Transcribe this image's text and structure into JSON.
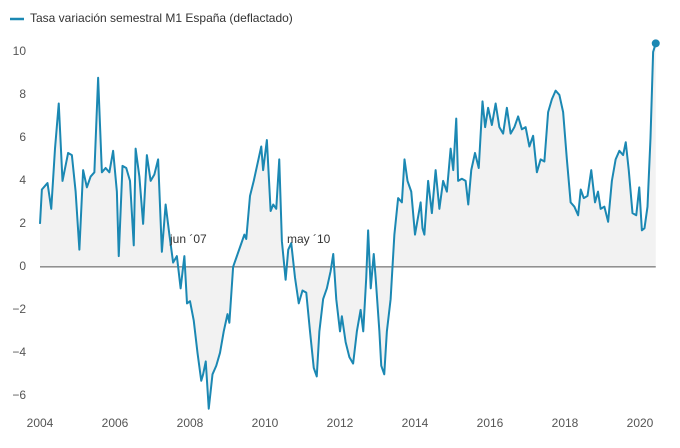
{
  "chart_data": {
    "type": "line",
    "series": [
      {
        "name": "Tasa variación semestral M1 España (deflactado)",
        "color": "#1b88b3",
        "x": [
          2004.0,
          2004.05,
          2004.15,
          2004.2,
          2004.3,
          2004.4,
          2004.5,
          2004.6,
          2004.75,
          2004.85,
          2004.95,
          2005.05,
          2005.15,
          2005.25,
          2005.35,
          2005.45,
          2005.55,
          2005.65,
          2005.75,
          2005.85,
          2005.95,
          2006.05,
          2006.1,
          2006.2,
          2006.3,
          2006.4,
          2006.5,
          2006.55,
          2006.65,
          2006.75,
          2006.85,
          2006.95,
          2007.05,
          2007.15,
          2007.25,
          2007.35,
          2007.45,
          2007.55,
          2007.65,
          2007.75,
          2007.85,
          2007.92,
          2008.0,
          2008.1,
          2008.2,
          2008.3,
          2008.35,
          2008.42,
          2008.5,
          2008.6,
          2008.7,
          2008.8,
          2008.9,
          2009.0,
          2009.05,
          2009.15,
          2009.25,
          2009.35,
          2009.45,
          2009.5,
          2009.6,
          2009.7,
          2009.8,
          2009.9,
          2009.95,
          2010.05,
          2010.15,
          2010.22,
          2010.3,
          2010.38,
          2010.45,
          2010.55,
          2010.62,
          2010.7,
          2010.8,
          2010.9,
          2011.0,
          2011.1,
          2011.2,
          2011.3,
          2011.38,
          2011.45,
          2011.55,
          2011.65,
          2011.75,
          2011.82,
          2011.9,
          2012.0,
          2012.05,
          2012.15,
          2012.25,
          2012.35,
          2012.45,
          2012.55,
          2012.62,
          2012.7,
          2012.75,
          2012.82,
          2012.9,
          2012.95,
          2013.05,
          2013.1,
          2013.18,
          2013.25,
          2013.35,
          2013.45,
          2013.55,
          2013.65,
          2013.72,
          2013.8,
          2013.9,
          2014.0,
          2014.05,
          2014.15,
          2014.2,
          2014.25,
          2014.35,
          2014.45,
          2014.55,
          2014.65,
          2014.75,
          2014.85,
          2014.95,
          2015.02,
          2015.1,
          2015.15,
          2015.25,
          2015.35,
          2015.42,
          2015.5,
          2015.6,
          2015.7,
          2015.8,
          2015.87,
          2015.95,
          2016.05,
          2016.15,
          2016.25,
          2016.35,
          2016.45,
          2016.55,
          2016.65,
          2016.75,
          2016.85,
          2016.95,
          2017.05,
          2017.15,
          2017.25,
          2017.35,
          2017.45,
          2017.55,
          2017.65,
          2017.75,
          2017.85,
          2017.95,
          2018.05,
          2018.15,
          2018.25,
          2018.35,
          2018.42,
          2018.5,
          2018.6,
          2018.7,
          2018.8,
          2018.88,
          2018.95,
          2019.05,
          2019.15,
          2019.25,
          2019.35,
          2019.45,
          2019.55,
          2019.62,
          2019.7,
          2019.8,
          2019.9,
          2019.98,
          2020.05,
          2020.12,
          2020.2,
          2020.28,
          2020.35,
          2020.42
        ],
        "values": [
          2.0,
          3.6,
          3.8,
          3.9,
          2.7,
          5.5,
          7.6,
          4.0,
          5.3,
          5.2,
          3.5,
          0.8,
          4.5,
          3.7,
          4.2,
          4.4,
          8.8,
          4.4,
          4.6,
          4.4,
          5.4,
          3.5,
          0.5,
          4.7,
          4.6,
          4.0,
          1.0,
          5.5,
          4.2,
          2.0,
          5.2,
          4.0,
          4.3,
          5.0,
          0.7,
          2.9,
          1.5,
          0.2,
          0.5,
          -1.0,
          0.5,
          -1.7,
          -1.6,
          -2.5,
          -4.0,
          -5.3,
          -5.0,
          -4.4,
          -6.6,
          -5.0,
          -4.6,
          -4.0,
          -3.0,
          -2.2,
          -2.6,
          0.0,
          0.5,
          1.0,
          1.5,
          1.3,
          3.3,
          4.0,
          4.8,
          5.6,
          4.5,
          5.9,
          2.6,
          2.9,
          2.7,
          5.0,
          1.2,
          -0.6,
          0.8,
          1.1,
          -0.5,
          -1.7,
          -1.1,
          -1.2,
          -3.0,
          -4.7,
          -5.1,
          -3.0,
          -1.5,
          -1.0,
          -0.2,
          0.6,
          -1.5,
          -3.0,
          -2.3,
          -3.5,
          -4.2,
          -4.5,
          -3.0,
          -2.0,
          -3.0,
          -0.5,
          1.7,
          -1.0,
          0.6,
          -0.5,
          -3.0,
          -4.6,
          -5.0,
          -3.0,
          -1.5,
          1.5,
          3.2,
          3.0,
          5.0,
          4.0,
          3.5,
          1.5,
          2.0,
          3.0,
          1.8,
          1.5,
          4.0,
          2.5,
          4.5,
          2.7,
          4.0,
          3.5,
          5.5,
          4.5,
          6.9,
          4.0,
          4.1,
          4.0,
          2.9,
          4.5,
          5.3,
          4.6,
          7.7,
          6.5,
          7.4,
          6.6,
          7.6,
          6.5,
          6.2,
          7.4,
          6.2,
          6.5,
          7.0,
          6.4,
          6.5,
          5.6,
          6.1,
          4.4,
          5.0,
          4.9,
          7.2,
          7.8,
          8.2,
          8.0,
          7.2,
          5.0,
          3.0,
          2.8,
          2.4,
          3.6,
          3.2,
          3.3,
          4.5,
          3.0,
          3.5,
          2.7,
          2.8,
          2.1,
          4.0,
          5.0,
          5.4,
          5.2,
          5.8,
          4.5,
          2.5,
          2.4,
          3.7,
          1.7,
          1.8,
          2.8,
          6.0,
          10.0,
          10.4
        ]
      }
    ],
    "annotations": [
      "jun ´07",
      "may ´10"
    ],
    "xlim": [
      2004,
      2021
    ],
    "xticks": [
      2004,
      2006,
      2008,
      2010,
      2012,
      2014,
      2016,
      2018,
      2020
    ],
    "ylim": [
      -6.8,
      11.3
    ],
    "yticks": [
      {
        "value": -6,
        "label": "−6"
      },
      {
        "value": -4,
        "label": "−4"
      },
      {
        "value": -2,
        "label": "−2"
      },
      0,
      2,
      4,
      6,
      8,
      10
    ],
    "grid": false,
    "area_fill": "#f2f2f2",
    "legend": "top-left"
  }
}
